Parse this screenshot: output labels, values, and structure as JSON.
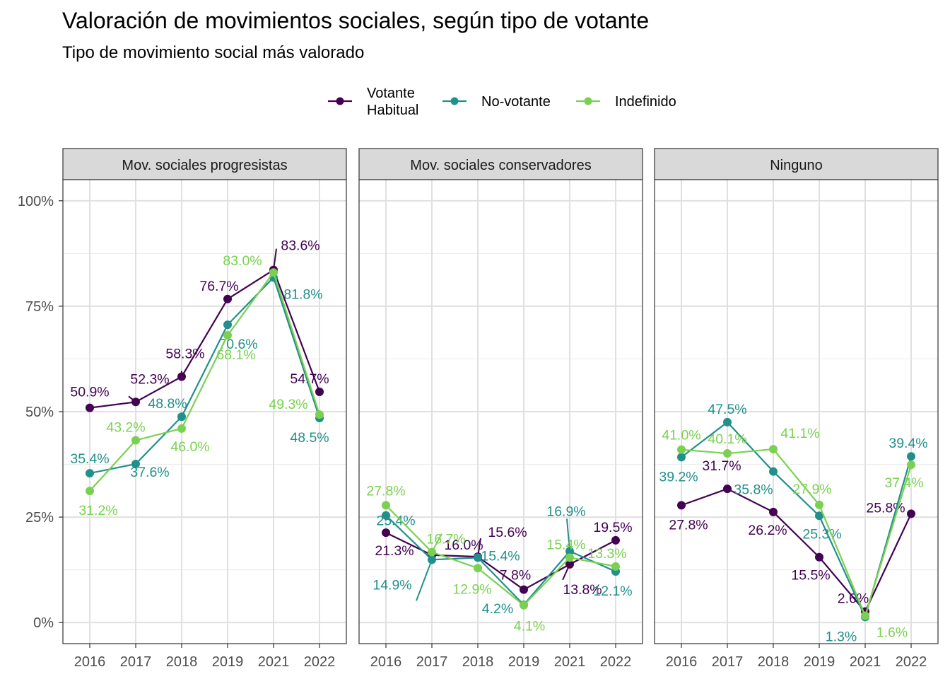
{
  "title": "Valoración de movimientos sociales, según tipo de votante",
  "subtitle": "Tipo de movimiento social más valorado",
  "legend": {
    "position": "top",
    "items": [
      {
        "name": "Votante Habitual",
        "lines": [
          "Votante",
          "Habitual"
        ],
        "color": "#440154"
      },
      {
        "name": "No-votante",
        "lines": [
          "No-votante"
        ],
        "color": "#21908C"
      },
      {
        "name": "Indefinido",
        "lines": [
          "Indefinido"
        ],
        "color": "#7AD151"
      }
    ]
  },
  "chart_data": {
    "type": "line",
    "x": [
      "2016",
      "2017",
      "2018",
      "2019",
      "2021",
      "2022"
    ],
    "y_ticks": [
      "0%",
      "25%",
      "50%",
      "75%",
      "100%"
    ],
    "y_tick_values": [
      0,
      25,
      50,
      75,
      100
    ],
    "ylim": [
      -5,
      105
    ],
    "grid": true,
    "panels": [
      {
        "facet": "Mov. sociales progresistas",
        "series": [
          {
            "name": "Votante Habitual",
            "values": [
              50.9,
              52.3,
              58.3,
              76.7,
              83.6,
              54.7
            ],
            "labels": [
              "50.9%",
              "52.3%",
              "58.3%",
              "76.7%",
              "83.6%",
              "54.7%"
            ]
          },
          {
            "name": "No-votante",
            "values": [
              35.4,
              37.6,
              48.8,
              70.6,
              81.8,
              48.5
            ],
            "labels": [
              "35.4%",
              "37.6%",
              "48.8%",
              "70.6%",
              "81.8%",
              "48.5%"
            ]
          },
          {
            "name": "Indefinido",
            "values": [
              31.2,
              43.2,
              46.0,
              68.1,
              83.0,
              49.3
            ],
            "labels": [
              "31.2%",
              "43.2%",
              "46.0%",
              "68.1%",
              "83.0%",
              "49.3%"
            ]
          }
        ]
      },
      {
        "facet": "Mov. sociales conservadores",
        "series": [
          {
            "name": "Votante Habitual",
            "values": [
              21.3,
              16.0,
              15.6,
              7.8,
              13.8,
              19.5
            ],
            "labels": [
              "21.3%",
              "16.0%",
              "15.6%",
              "7.8%",
              "13.8%",
              "19.5%"
            ]
          },
          {
            "name": "No-votante",
            "values": [
              25.4,
              14.9,
              15.4,
              4.2,
              16.9,
              12.1
            ],
            "labels": [
              "25.4%",
              "14.9%",
              "15.4%",
              "4.2%",
              "16.9%",
              "12.1%"
            ]
          },
          {
            "name": "Indefinido",
            "values": [
              27.8,
              16.7,
              12.9,
              4.1,
              15.4,
              13.3
            ],
            "labels": [
              "27.8%",
              "16.7%",
              "12.9%",
              "4.1%",
              "15.4%",
              "13.3%"
            ]
          }
        ]
      },
      {
        "facet": "Ninguno",
        "series": [
          {
            "name": "Votante Habitual",
            "values": [
              27.8,
              31.7,
              26.2,
              15.5,
              2.6,
              25.8
            ],
            "labels": [
              "27.8%",
              "31.7%",
              "26.2%",
              "15.5%",
              "2.6%",
              "25.8%"
            ]
          },
          {
            "name": "No-votante",
            "values": [
              39.2,
              47.5,
              35.8,
              25.3,
              1.3,
              39.4
            ],
            "labels": [
              "39.2%",
              "47.5%",
              "35.8%",
              "25.3%",
              "1.3%",
              "39.4%"
            ]
          },
          {
            "name": "Indefinido",
            "values": [
              41.0,
              40.1,
              41.1,
              27.9,
              1.6,
              37.4
            ],
            "labels": [
              "41.0%",
              "40.1%",
              "41.1%",
              "27.9%",
              "1.6%",
              "37.4%"
            ]
          }
        ]
      }
    ]
  }
}
